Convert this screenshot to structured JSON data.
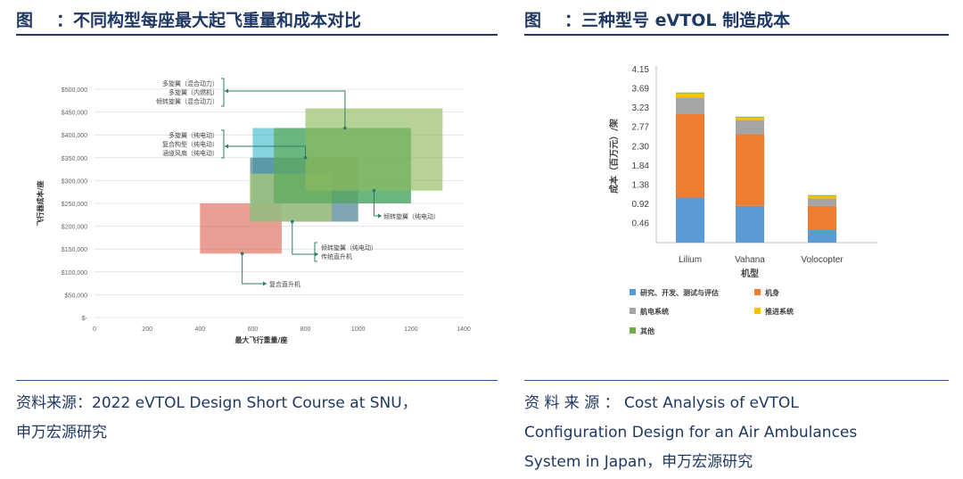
{
  "left": {
    "fig_label": "图",
    "fig_colon": "：",
    "title": "不同构型每座最大起飞重量和成本对比",
    "source_line1": "资料来源：2022 eVTOL Design Short Course at SNU，",
    "source_line2": "申万宏源研究"
  },
  "right": {
    "fig_label": "图",
    "fig_colon": "：",
    "title": "三种型号 eVTOL 制造成本",
    "source_line1": "资 料 来 源 ： Cost Analysis of eVTOL",
    "source_line2": "Configuration Design for an Air Ambulances",
    "source_line3": "System in Japan，申万宏源研究"
  },
  "colors": {
    "navy": "#1f3864",
    "research": "#5b9bd5",
    "airframe": "#ed7d31",
    "avionics": "#a5a5a5",
    "propulsion": "#ffc000",
    "other": "#70ad47",
    "callout": "#2e7d6b"
  },
  "chart_data": [
    {
      "type": "scatter",
      "xlabel": "最大飞行重量/座",
      "ylabel": "飞行器成本/座",
      "xlim": [
        0,
        1400
      ],
      "ylim": [
        0,
        500000
      ],
      "x_ticks": [
        "0",
        "200",
        "400",
        "600",
        "800",
        "1000",
        "1200",
        "1400"
      ],
      "y_ticks": [
        "$-",
        "$50,000",
        "$100,000",
        "$150,000",
        "$200,000",
        "$250,000",
        "$300,000",
        "$350,000",
        "$400,000",
        "$450,000",
        "$500,000"
      ],
      "regions": [
        {
          "x0": 400,
          "x1": 710,
          "y0": 140000,
          "y1": 250000,
          "color": "#e06c5a",
          "opacity": 0.65
        },
        {
          "x0": 600,
          "x1": 1200,
          "y0": 250000,
          "y1": 415000,
          "color": "#33b5c8",
          "opacity": 0.6
        },
        {
          "x0": 590,
          "x1": 1000,
          "y0": 210000,
          "y1": 350000,
          "color": "#4a8090",
          "opacity": 0.7
        },
        {
          "x0": 590,
          "x1": 900,
          "y0": 210000,
          "y1": 315000,
          "color": "#a9c97a",
          "opacity": 0.75
        },
        {
          "x0": 680,
          "x1": 1200,
          "y0": 250000,
          "y1": 415000,
          "color": "#5daa5a",
          "opacity": 0.7
        },
        {
          "x0": 800,
          "x1": 1320,
          "y0": 278000,
          "y1": 458000,
          "color": "#8fba5c",
          "opacity": 0.65
        }
      ],
      "annotations": [
        {
          "lines": [
            "多旋翼（混合动力）",
            "多旋翼（内燃机）",
            "倾转旋翼（混合动力）"
          ],
          "point": [
            950,
            415000
          ]
        },
        {
          "lines": [
            "多旋翼（纯电动）",
            "复合构型（纯电动）",
            "涵道风扇（纯电动）"
          ],
          "point": [
            800,
            350000
          ]
        },
        {
          "lines": [
            "倾转旋翼（纯电动）"
          ],
          "point": [
            1060,
            278000
          ]
        },
        {
          "lines": [
            "倾转旋翼（纯电动）",
            "传统直升机"
          ],
          "point": [
            750,
            210000
          ]
        },
        {
          "lines": [
            "复合直升机"
          ],
          "point": [
            560,
            140000
          ]
        }
      ]
    },
    {
      "type": "bar",
      "stacked": true,
      "categories": [
        "Lilium",
        "Vahana",
        "Volocopter"
      ],
      "xlabel": "机型",
      "ylabel": "成本（百万元）/架",
      "ylim": [
        0,
        4.15
      ],
      "y_ticks": [
        "4.15",
        "3.69",
        "3.23",
        "2.77",
        "2.30",
        "1.84",
        "1.38",
        "0.92",
        "0.46"
      ],
      "series": [
        {
          "name": "研究、开发、测试与评估",
          "values": [
            1.08,
            0.88,
            0.3
          ],
          "color": "#5b9bd5"
        },
        {
          "name": "机身",
          "values": [
            2.0,
            1.72,
            0.58
          ],
          "color": "#ed7d31"
        },
        {
          "name": "航电系统",
          "values": [
            0.4,
            0.34,
            0.18
          ],
          "color": "#a5a5a5"
        },
        {
          "name": "推进系统",
          "values": [
            0.1,
            0.06,
            0.06
          ],
          "color": "#ffc000"
        },
        {
          "name": "其他",
          "values": [
            0.02,
            0.02,
            0.02
          ],
          "color": "#70ad47"
        }
      ]
    }
  ]
}
